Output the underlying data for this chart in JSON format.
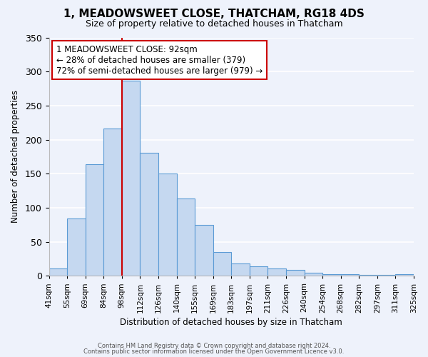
{
  "title": "1, MEADOWSWEET CLOSE, THATCHAM, RG18 4DS",
  "subtitle": "Size of property relative to detached houses in Thatcham",
  "xlabel": "Distribution of detached houses by size in Thatcham",
  "ylabel": "Number of detached properties",
  "footer_line1": "Contains HM Land Registry data © Crown copyright and database right 2024.",
  "footer_line2": "Contains public sector information licensed under the Open Government Licence v3.0.",
  "tick_labels": [
    "41sqm",
    "55sqm",
    "69sqm",
    "84sqm",
    "98sqm",
    "112sqm",
    "126sqm",
    "140sqm",
    "155sqm",
    "169sqm",
    "183sqm",
    "197sqm",
    "211sqm",
    "226sqm",
    "240sqm",
    "254sqm",
    "268sqm",
    "282sqm",
    "297sqm",
    "311sqm",
    "325sqm"
  ],
  "values": [
    11,
    84,
    164,
    216,
    287,
    181,
    150,
    114,
    75,
    35,
    18,
    14,
    11,
    9,
    5,
    3,
    2,
    1,
    1,
    2
  ],
  "bar_color": "#c5d8f0",
  "bar_edge_color": "#5b9bd5",
  "background_color": "#eef2fb",
  "grid_color": "#ffffff",
  "ylim": [
    0,
    350
  ],
  "yticks": [
    0,
    50,
    100,
    150,
    200,
    250,
    300,
    350
  ],
  "annotation_text_line1": "1 MEADOWSWEET CLOSE: 92sqm",
  "annotation_text_line2": "← 28% of detached houses are smaller (379)",
  "annotation_text_line3": "72% of semi-detached houses are larger (979) →",
  "vline_x_index": 4.0,
  "vline_color": "#cc0000"
}
